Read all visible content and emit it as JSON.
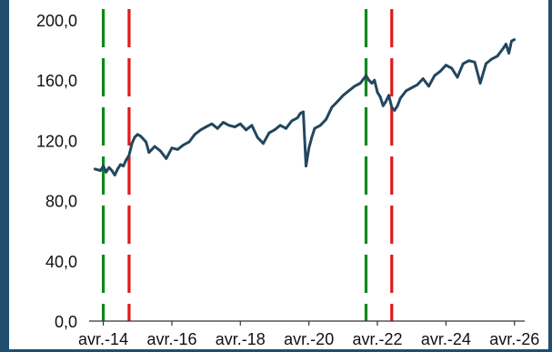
{
  "colors": {
    "background_frame": "#1f4e6e",
    "series_line": "#21475f",
    "vline_green": "#0a8a1a",
    "vline_red": "#e0191b"
  },
  "chart_data": {
    "type": "line",
    "title": "",
    "xlabel": "",
    "ylabel": "",
    "xlim": [
      "2013-11-01",
      "2026-06-30"
    ],
    "ylim": [
      0,
      200
    ],
    "x_ticks": [
      "avr.-14",
      "avr.-16",
      "avr.-18",
      "avr.-20",
      "avr.-22",
      "avr.-24",
      "avr.-26"
    ],
    "y_ticks": [
      "0,0",
      "40,0",
      "80,0",
      "120,0",
      "160,0",
      "200,0"
    ],
    "grid": false,
    "legend": "none",
    "series": [
      {
        "x": [
          "2014-01-01",
          "2014-03-01",
          "2014-04-01",
          "2014-05-01",
          "2014-06-01",
          "2014-07-01",
          "2014-08-01",
          "2014-09-01",
          "2014-10-01",
          "2014-11-01",
          "2014-12-01",
          "2015-01-01",
          "2015-02-01",
          "2015-03-01",
          "2015-04-01",
          "2015-05-01",
          "2015-06-01",
          "2015-07-01",
          "2015-08-01",
          "2015-09-01",
          "2015-10-01",
          "2015-12-01",
          "2016-02-01",
          "2016-04-01",
          "2016-06-01",
          "2016-08-01",
          "2016-10-01",
          "2016-12-01",
          "2017-02-01",
          "2017-04-01",
          "2017-06-01",
          "2017-08-01",
          "2017-10-01",
          "2017-12-01",
          "2018-02-01",
          "2018-04-01",
          "2018-06-01",
          "2018-08-01",
          "2018-10-01",
          "2018-12-01",
          "2019-02-01",
          "2019-04-01",
          "2019-06-01",
          "2019-08-01",
          "2019-10-01",
          "2019-12-01",
          "2020-01-01",
          "2020-02-01",
          "2020-03-01",
          "2020-04-01",
          "2020-05-01",
          "2020-06-01",
          "2020-08-01",
          "2020-10-01",
          "2020-12-01",
          "2021-02-01",
          "2021-04-01",
          "2021-06-01",
          "2021-08-01",
          "2021-10-01",
          "2021-12-01",
          "2022-01-01",
          "2022-02-01",
          "2022-03-01",
          "2022-04-01",
          "2022-05-01",
          "2022-06-01",
          "2022-07-01",
          "2022-08-01",
          "2022-09-01",
          "2022-10-01",
          "2022-11-01",
          "2022-12-01",
          "2023-02-01",
          "2023-04-01",
          "2023-06-01",
          "2023-08-01",
          "2023-10-01",
          "2023-12-01",
          "2024-02-01",
          "2024-04-01",
          "2024-06-01",
          "2024-08-01",
          "2024-10-01",
          "2024-12-01",
          "2025-02-01",
          "2025-04-01",
          "2025-06-01",
          "2025-08-01",
          "2025-10-01",
          "2025-12-01",
          "2026-01-01",
          "2026-02-01",
          "2026-03-01",
          "2026-04-01"
        ],
        "values": [
          101,
          100,
          103,
          99,
          102,
          100,
          97,
          101,
          104,
          103,
          107,
          110,
          118,
          122,
          124,
          123,
          121,
          119,
          112,
          114,
          116,
          113,
          108,
          115,
          114,
          117,
          119,
          124,
          127,
          129,
          131,
          128,
          132,
          130,
          129,
          131,
          127,
          130,
          122,
          118,
          125,
          127,
          130,
          128,
          133,
          135,
          138,
          139,
          103,
          115,
          122,
          128,
          130,
          134,
          142,
          146,
          150,
          153,
          156,
          158,
          163,
          160,
          158,
          160,
          152,
          149,
          143,
          146,
          150,
          142,
          140,
          143,
          148,
          153,
          155,
          157,
          161,
          156,
          163,
          166,
          170,
          168,
          162,
          171,
          173,
          172,
          158,
          171,
          174,
          176,
          181,
          184,
          178,
          186,
          187
        ]
      }
    ],
    "vertical_lines": [
      {
        "x": "2014-04-01",
        "color": "green",
        "style": "dashed"
      },
      {
        "x": "2015-01-01",
        "color": "red",
        "style": "dashed"
      },
      {
        "x": "2021-12-01",
        "color": "green",
        "style": "dashed"
      },
      {
        "x": "2022-09-01",
        "color": "red",
        "style": "dashed"
      }
    ]
  }
}
